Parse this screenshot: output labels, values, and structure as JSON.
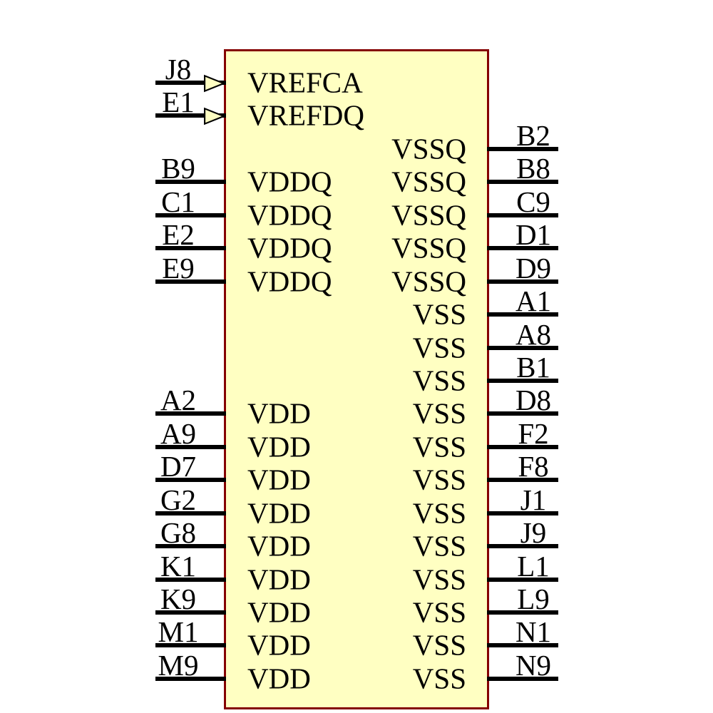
{
  "component": {
    "kind": "schematic-symbol",
    "body_fill": "#FFFFC2",
    "body_outline": "#840000",
    "pin_color": "#000000",
    "text_color": "#000000"
  },
  "pins": {
    "left": [
      {
        "number": "J8",
        "name": "VREFCA",
        "row": 0,
        "style": "input-arrow"
      },
      {
        "number": "E1",
        "name": "VREFDQ",
        "row": 1,
        "style": "input-arrow"
      },
      {
        "number": "B9",
        "name": "VDDQ",
        "row": 3,
        "style": "line"
      },
      {
        "number": "C1",
        "name": "VDDQ",
        "row": 4,
        "style": "line"
      },
      {
        "number": "E2",
        "name": "VDDQ",
        "row": 5,
        "style": "line"
      },
      {
        "number": "E9",
        "name": "VDDQ",
        "row": 6,
        "style": "line"
      },
      {
        "number": "A2",
        "name": "VDD",
        "row": 10,
        "style": "line"
      },
      {
        "number": "A9",
        "name": "VDD",
        "row": 11,
        "style": "line"
      },
      {
        "number": "D7",
        "name": "VDD",
        "row": 12,
        "style": "line"
      },
      {
        "number": "G2",
        "name": "VDD",
        "row": 13,
        "style": "line"
      },
      {
        "number": "G8",
        "name": "VDD",
        "row": 14,
        "style": "line"
      },
      {
        "number": "K1",
        "name": "VDD",
        "row": 15,
        "style": "line"
      },
      {
        "number": "K9",
        "name": "VDD",
        "row": 16,
        "style": "line"
      },
      {
        "number": "M1",
        "name": "VDD",
        "row": 17,
        "style": "line"
      },
      {
        "number": "M9",
        "name": "VDD",
        "row": 18,
        "style": "line"
      }
    ],
    "right": [
      {
        "number": "B2",
        "name": "VSSQ",
        "row": 2,
        "style": "line"
      },
      {
        "number": "B8",
        "name": "VSSQ",
        "row": 3,
        "style": "line"
      },
      {
        "number": "C9",
        "name": "VSSQ",
        "row": 4,
        "style": "line"
      },
      {
        "number": "D1",
        "name": "VSSQ",
        "row": 5,
        "style": "line"
      },
      {
        "number": "D9",
        "name": "VSSQ",
        "row": 6,
        "style": "line"
      },
      {
        "number": "A1",
        "name": "VSS",
        "row": 7,
        "style": "line"
      },
      {
        "number": "A8",
        "name": "VSS",
        "row": 8,
        "style": "line"
      },
      {
        "number": "B1",
        "name": "VSS",
        "row": 9,
        "style": "line"
      },
      {
        "number": "D8",
        "name": "VSS",
        "row": 10,
        "style": "line"
      },
      {
        "number": "F2",
        "name": "VSS",
        "row": 11,
        "style": "line"
      },
      {
        "number": "F8",
        "name": "VSS",
        "row": 12,
        "style": "line"
      },
      {
        "number": "J1",
        "name": "VSS",
        "row": 13,
        "style": "line"
      },
      {
        "number": "J9",
        "name": "VSS",
        "row": 14,
        "style": "line"
      },
      {
        "number": "L1",
        "name": "VSS",
        "row": 15,
        "style": "line"
      },
      {
        "number": "L9",
        "name": "VSS",
        "row": 16,
        "style": "line"
      },
      {
        "number": "N1",
        "name": "VSS",
        "row": 17,
        "style": "line"
      },
      {
        "number": "N9",
        "name": "VSS",
        "row": 18,
        "style": "line"
      }
    ]
  }
}
